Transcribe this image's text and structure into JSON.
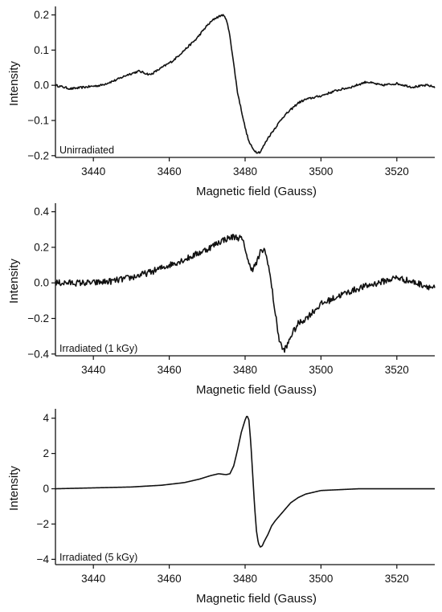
{
  "chart_data": [
    {
      "type": "line",
      "title": "",
      "panel_label": "Unirradiated",
      "xlabel": "Magnetic field (Gauss)",
      "ylabel": "Intensity",
      "xlim": [
        3430,
        3530
      ],
      "ylim": [
        -0.205,
        0.215
      ],
      "xticks": [
        3440,
        3460,
        3480,
        3500,
        3520
      ],
      "yticks": [
        0.2,
        0.1,
        0.0,
        -0.1,
        -0.2
      ],
      "ytick_labels": [
        "0.2",
        "0.1",
        "0.0",
        "−0.1",
        "−0.2"
      ],
      "grid": false,
      "noise": 0.003,
      "series": [
        {
          "x": [
            3430,
            3434,
            3438,
            3442,
            3446,
            3449,
            3452,
            3455,
            3458,
            3461,
            3464,
            3467,
            3470,
            3472,
            3474,
            3475,
            3476,
            3477,
            3478,
            3479,
            3480,
            3481,
            3482,
            3483,
            3484,
            3485,
            3486,
            3488,
            3490,
            3492,
            3494,
            3496,
            3500,
            3504,
            3508,
            3512,
            3516,
            3520,
            3524,
            3528,
            3530
          ],
          "y": [
            0.0,
            -0.01,
            -0.005,
            0.0,
            0.015,
            0.03,
            0.04,
            0.03,
            0.05,
            0.07,
            0.1,
            0.13,
            0.17,
            0.19,
            0.2,
            0.19,
            0.14,
            0.06,
            -0.02,
            -0.07,
            -0.12,
            -0.16,
            -0.18,
            -0.19,
            -0.19,
            -0.17,
            -0.15,
            -0.12,
            -0.09,
            -0.07,
            -0.05,
            -0.04,
            -0.03,
            -0.015,
            -0.005,
            0.01,
            0.0,
            0.005,
            -0.005,
            0.0,
            -0.005
          ]
        }
      ]
    },
    {
      "type": "line",
      "title": "",
      "panel_label": "Irradiated (1 kGy)",
      "xlabel": "Magnetic field (Gauss)",
      "ylabel": "Intensity",
      "xlim": [
        3430,
        3530
      ],
      "ylim": [
        -0.41,
        0.43
      ],
      "xticks": [
        3440,
        3460,
        3480,
        3500,
        3520
      ],
      "yticks": [
        0.4,
        0.2,
        0.0,
        -0.2,
        -0.4
      ],
      "ytick_labels": [
        "0.4",
        "0.2",
        "0.0",
        "−0.2",
        "−0.4"
      ],
      "grid": false,
      "noise": 0.018,
      "series": [
        {
          "x": [
            3430,
            3435,
            3440,
            3445,
            3450,
            3455,
            3460,
            3465,
            3470,
            3474,
            3477,
            3479,
            3480,
            3481,
            3482,
            3483,
            3484,
            3485,
            3486,
            3487,
            3488,
            3489,
            3490,
            3491,
            3492,
            3494,
            3496,
            3498,
            3500,
            3505,
            3510,
            3515,
            3520,
            3525,
            3530
          ],
          "y": [
            0.0,
            0.0,
            0.0,
            0.01,
            0.03,
            0.06,
            0.1,
            0.14,
            0.19,
            0.24,
            0.26,
            0.25,
            0.2,
            0.1,
            0.08,
            0.11,
            0.17,
            0.19,
            0.12,
            -0.02,
            -0.18,
            -0.32,
            -0.38,
            -0.36,
            -0.3,
            -0.23,
            -0.2,
            -0.16,
            -0.12,
            -0.07,
            -0.03,
            0.0,
            0.03,
            0.0,
            -0.03
          ]
        }
      ]
    },
    {
      "type": "line",
      "title": "",
      "panel_label": "Irradiated (5 kGy)",
      "xlabel": "Magnetic field (Gauss)",
      "ylabel": "Intensity",
      "xlim": [
        3430,
        3530
      ],
      "ylim": [
        -4.3,
        4.35
      ],
      "xticks": [
        3440,
        3460,
        3480,
        3500,
        3520
      ],
      "yticks": [
        4,
        2,
        0,
        -2,
        -4
      ],
      "ytick_labels": [
        "4",
        "2",
        "0",
        "−2",
        "−4"
      ],
      "grid": false,
      "noise": 0.0,
      "series": [
        {
          "x": [
            3430,
            3440,
            3450,
            3458,
            3464,
            3468,
            3471,
            3473,
            3475,
            3476,
            3477,
            3478,
            3479,
            3480,
            3480.5,
            3481,
            3481.5,
            3482,
            3482.5,
            3483,
            3483.5,
            3484,
            3484.5,
            3485,
            3486,
            3487,
            3488,
            3489,
            3490,
            3491,
            3492,
            3494,
            3496,
            3500,
            3505,
            3510,
            3520,
            3530
          ],
          "y": [
            0.0,
            0.05,
            0.1,
            0.2,
            0.35,
            0.55,
            0.75,
            0.85,
            0.8,
            0.85,
            1.3,
            2.2,
            3.2,
            3.9,
            4.15,
            3.9,
            2.6,
            0.8,
            -1.0,
            -2.4,
            -3.1,
            -3.3,
            -3.25,
            -3.0,
            -2.6,
            -2.1,
            -1.8,
            -1.55,
            -1.3,
            -1.05,
            -0.8,
            -0.5,
            -0.3,
            -0.1,
            -0.05,
            0.0,
            0.0,
            0.0
          ]
        }
      ]
    }
  ]
}
